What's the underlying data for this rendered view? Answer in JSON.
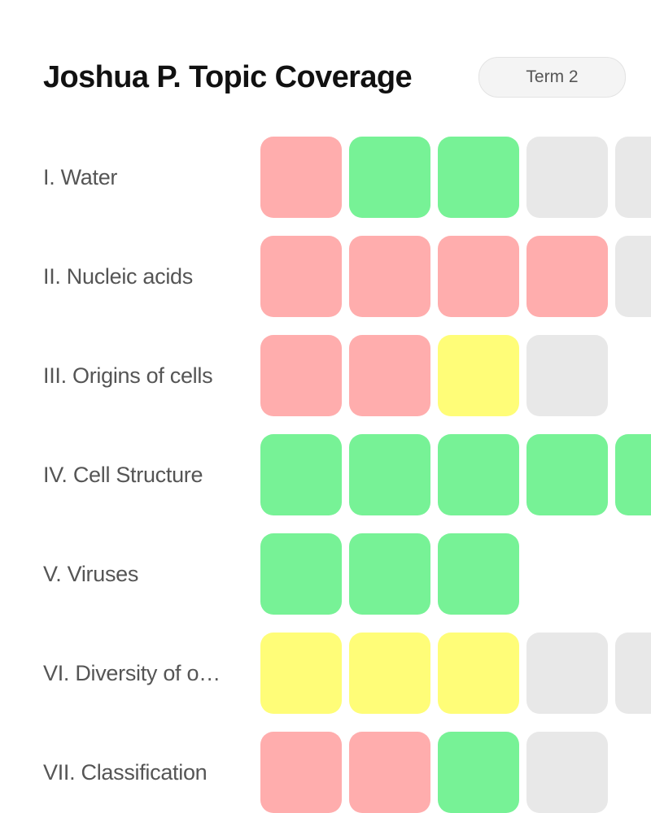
{
  "header": {
    "title": "Joshua P. Topic Coverage",
    "term_label": "Term 2"
  },
  "status_colors": {
    "weak": "#ffadad",
    "strong": "#77f296",
    "partial": "#fffd78",
    "unassessed": "#e8e8e8"
  },
  "topics": [
    {
      "label": "I. Water",
      "cells": [
        "weak",
        "strong",
        "strong",
        "unassessed",
        "unassessed"
      ]
    },
    {
      "label": "II. Nucleic acids",
      "cells": [
        "weak",
        "weak",
        "weak",
        "weak",
        "unassessed"
      ]
    },
    {
      "label": "III. Origins of cells",
      "cells": [
        "weak",
        "weak",
        "partial",
        "unassessed"
      ]
    },
    {
      "label": "IV. Cell Structure",
      "cells": [
        "strong",
        "strong",
        "strong",
        "strong",
        "strong"
      ]
    },
    {
      "label": "V. Viruses",
      "cells": [
        "strong",
        "strong",
        "strong"
      ]
    },
    {
      "label": "VI. Diversity of organisms",
      "cells": [
        "partial",
        "partial",
        "partial",
        "unassessed",
        "unassessed"
      ]
    },
    {
      "label": "VII. Classification",
      "cells": [
        "weak",
        "weak",
        "strong",
        "unassessed"
      ]
    }
  ]
}
